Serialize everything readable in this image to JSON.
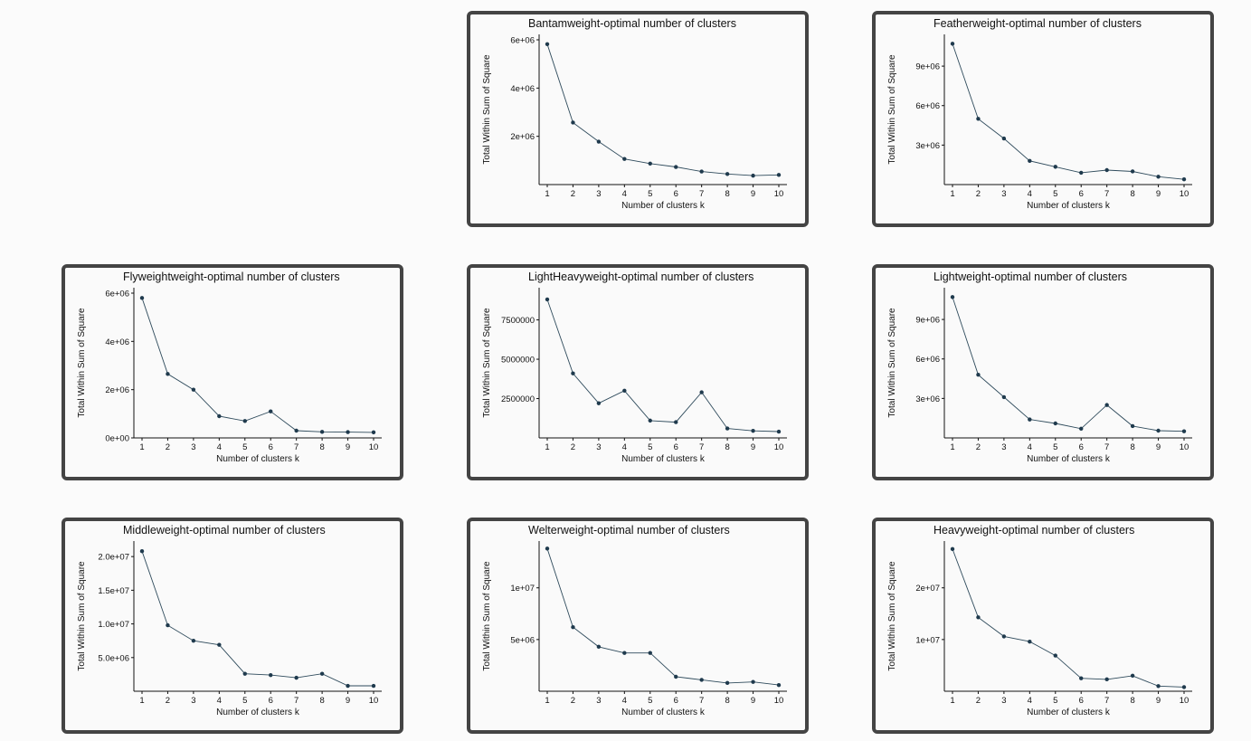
{
  "chart_data": [
    {
      "type": "line",
      "title": "Bantamweight-optimal number of clusters",
      "xlabel": "Number of clusters k",
      "ylabel": "Total Within Sum of Square",
      "x": [
        1,
        2,
        3,
        4,
        5,
        6,
        7,
        8,
        9,
        10
      ],
      "values": [
        5820000,
        2570000,
        1780000,
        1060000,
        870000,
        730000,
        540000,
        440000,
        370000,
        400000
      ],
      "ylim": [
        0,
        6000000
      ],
      "yticks": [
        2000000,
        4000000,
        6000000
      ],
      "ytick_labels": [
        "2e+06",
        "4e+06",
        "6e+06"
      ],
      "grid": false
    },
    {
      "type": "line",
      "title": "Featherweight-optimal number of clusters",
      "xlabel": "Number of clusters k",
      "ylabel": "Total Within Sum of Square",
      "x": [
        1,
        2,
        3,
        4,
        5,
        6,
        7,
        8,
        9,
        10
      ],
      "values": [
        10700000,
        5000000,
        3500000,
        1800000,
        1350000,
        900000,
        1100000,
        1000000,
        600000,
        400000
      ],
      "ylim": [
        0,
        11000000
      ],
      "yticks": [
        3000000,
        6000000,
        9000000
      ],
      "ytick_labels": [
        "3e+06",
        "6e+06",
        "9e+06"
      ],
      "grid": false
    },
    {
      "type": "line",
      "title": "Flyweightweight-optimal number of clusters",
      "xlabel": "Number of clusters k",
      "ylabel": "Total Within Sum of Square",
      "x": [
        1,
        2,
        3,
        4,
        5,
        6,
        7,
        8,
        9,
        10
      ],
      "values": [
        5800000,
        2650000,
        2000000,
        900000,
        700000,
        1100000,
        300000,
        250000,
        240000,
        230000
      ],
      "ylim": [
        0,
        6000000
      ],
      "yticks": [
        0,
        2000000,
        4000000,
        6000000
      ],
      "ytick_labels": [
        "0e+00",
        "2e+06",
        "4e+06",
        "6e+06"
      ],
      "grid": false
    },
    {
      "type": "line",
      "title": "LightHeavyweight-optimal number of clusters",
      "xlabel": "Number of clusters k",
      "ylabel": "Total Within Sum of Square",
      "x": [
        1,
        2,
        3,
        4,
        5,
        6,
        7,
        8,
        9,
        10
      ],
      "values": [
        8800000,
        4100000,
        2200000,
        3000000,
        1100000,
        1000000,
        2900000,
        600000,
        450000,
        400000
      ],
      "ylim": [
        0,
        9200000
      ],
      "yticks": [
        2500000,
        5000000,
        7500000
      ],
      "ytick_labels": [
        "2500000",
        "5000000",
        "7500000"
      ],
      "grid": false
    },
    {
      "type": "line",
      "title": "Lightweight-optimal number of clusters",
      "xlabel": "Number of clusters k",
      "ylabel": "Total Within Sum of Square",
      "x": [
        1,
        2,
        3,
        4,
        5,
        6,
        7,
        8,
        9,
        10
      ],
      "values": [
        10700000,
        4800000,
        3100000,
        1400000,
        1100000,
        700000,
        2500000,
        900000,
        550000,
        500000
      ],
      "ylim": [
        0,
        11000000
      ],
      "yticks": [
        3000000,
        6000000,
        9000000
      ],
      "ytick_labels": [
        "3e+06",
        "6e+06",
        "9e+06"
      ],
      "grid": false
    },
    {
      "type": "line",
      "title": "Middleweight-optimal number of clusters",
      "xlabel": "Number of clusters k",
      "ylabel": "Total Within Sum of Square",
      "x": [
        1,
        2,
        3,
        4,
        5,
        6,
        7,
        8,
        9,
        10
      ],
      "values": [
        20800000,
        9800000,
        7500000,
        6900000,
        2600000,
        2400000,
        2000000,
        2600000,
        800000,
        800000
      ],
      "ylim": [
        0,
        21500000
      ],
      "yticks": [
        5000000,
        10000000,
        15000000,
        20000000
      ],
      "ytick_labels": [
        "5.0e+06",
        "1.0e+07",
        "1.5e+07",
        "2.0e+07"
      ],
      "grid": false
    },
    {
      "type": "line",
      "title": "Welterweight-optimal number of clusters",
      "xlabel": "Number of clusters k",
      "ylabel": "Total Within Sum of Square",
      "x": [
        1,
        2,
        3,
        4,
        5,
        6,
        7,
        8,
        9,
        10
      ],
      "values": [
        13800000,
        6200000,
        4300000,
        3700000,
        3700000,
        1400000,
        1100000,
        800000,
        900000,
        600000
      ],
      "ylim": [
        0,
        14000000
      ],
      "yticks": [
        5000000,
        10000000
      ],
      "ytick_labels": [
        "5e+06",
        "1e+07"
      ],
      "grid": false
    },
    {
      "type": "line",
      "title": "Heavyweight-optimal number of clusters",
      "xlabel": "Number of clusters k",
      "ylabel": "Total Within Sum of Square",
      "x": [
        1,
        2,
        3,
        4,
        5,
        6,
        7,
        8,
        9,
        10
      ],
      "values": [
        27500000,
        14300000,
        10600000,
        9600000,
        6900000,
        2500000,
        2300000,
        3000000,
        1000000,
        800000
      ],
      "ylim": [
        0,
        28000000
      ],
      "yticks": [
        10000000,
        20000000
      ],
      "ytick_labels": [
        "1e+07",
        "2e+07"
      ],
      "grid": false
    }
  ],
  "colors": {
    "line": "#2f4b5c",
    "point": "#1f3a4d",
    "axis": "#111111",
    "panel_border": "#444444"
  }
}
